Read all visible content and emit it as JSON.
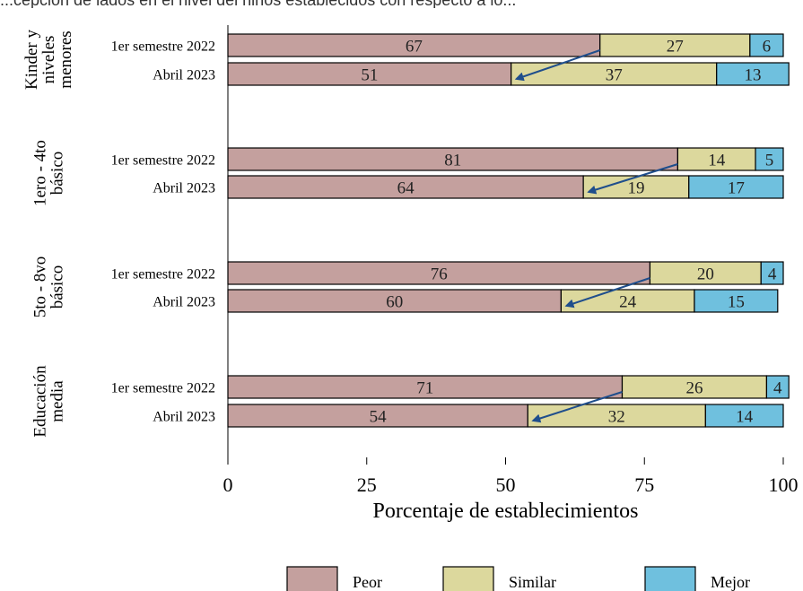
{
  "header": {
    "clipped_text": "...cepción de lados en el nivel del niños establecidos con respecto a lo..."
  },
  "chart_data": {
    "type": "bar",
    "orientation": "horizontal",
    "stacked": true,
    "xlabel": "Porcentaje de establecimientos",
    "xlim": [
      0,
      100
    ],
    "xticks": [
      "0",
      "25",
      "50",
      "75",
      "100"
    ],
    "groups": [
      {
        "label": "Kinder y niveles menores",
        "label_lines": [
          "Kinder y",
          "niveles",
          "menores"
        ],
        "rows": [
          {
            "label": "1er semestre 2022",
            "values": [
              67,
              27,
              6
            ]
          },
          {
            "label": "Abril 2023",
            "values": [
              51,
              37,
              13
            ]
          }
        ]
      },
      {
        "label": "1ero - 4to básico",
        "label_lines": [
          "1ero - 4to",
          "básico"
        ],
        "rows": [
          {
            "label": "1er semestre 2022",
            "values": [
              81,
              14,
              5
            ]
          },
          {
            "label": "Abril 2023",
            "values": [
              64,
              19,
              17
            ]
          }
        ]
      },
      {
        "label": "5to - 8vo básico",
        "label_lines": [
          "5to - 8vo",
          "básico"
        ],
        "rows": [
          {
            "label": "1er semestre 2022",
            "values": [
              76,
              20,
              4
            ]
          },
          {
            "label": "Abril 2023",
            "values": [
              60,
              24,
              15
            ]
          }
        ]
      },
      {
        "label": "Educación media",
        "label_lines": [
          "Educación",
          "media"
        ],
        "rows": [
          {
            "label": "1er semestre 2022",
            "values": [
              71,
              26,
              4
            ]
          },
          {
            "label": "Abril 2023",
            "values": [
              54,
              32,
              14
            ]
          }
        ]
      }
    ],
    "series": [
      {
        "name": "Peor",
        "color": "#c4a09e"
      },
      {
        "name": "Similar",
        "color": "#dcd89d"
      },
      {
        "name": "Mejor",
        "color": "#6fc0de"
      }
    ],
    "arrow_color": "#1f4e8c",
    "legend_position": "bottom",
    "grid": false
  }
}
